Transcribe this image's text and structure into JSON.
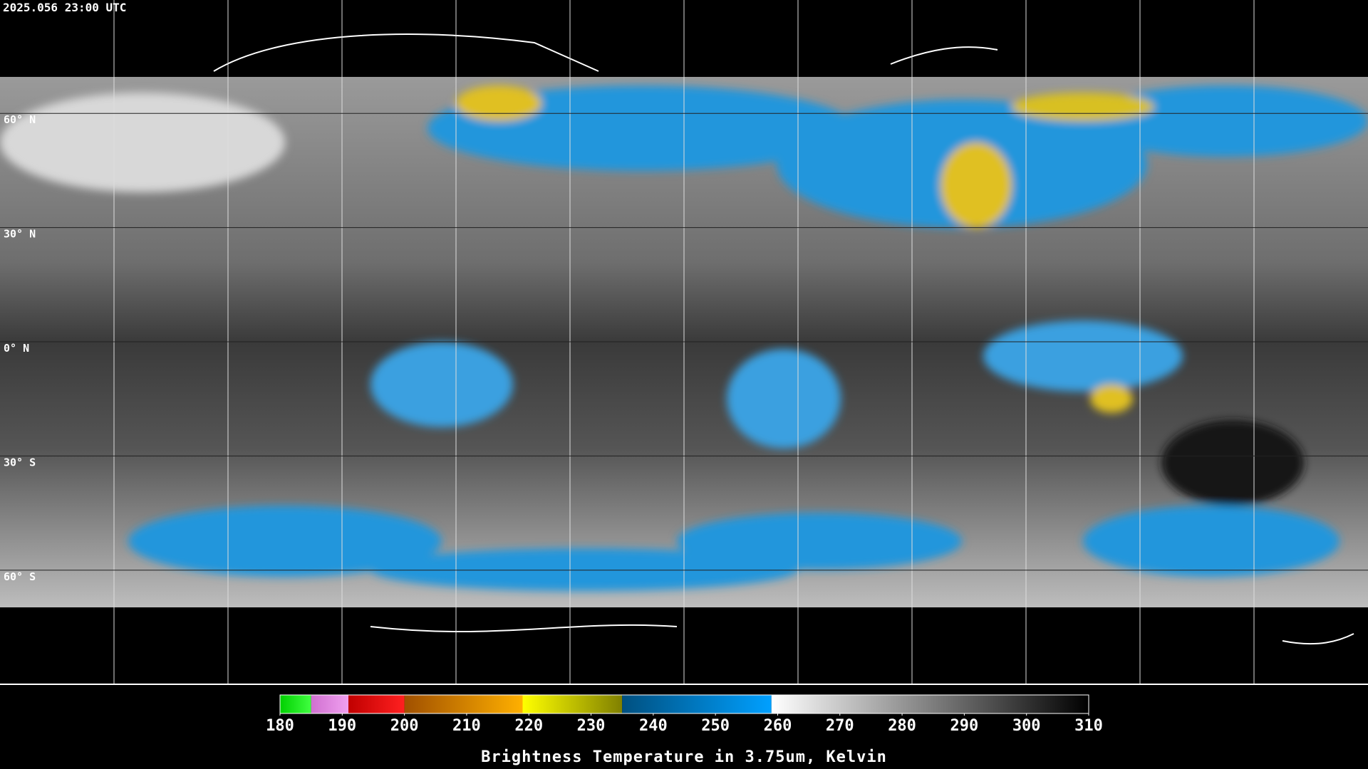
{
  "header": {
    "timestamp": "2025.056 23:00 UTC"
  },
  "latitude_labels": [
    "60° N",
    "30° N",
    "0° N",
    "30° S",
    "60° S"
  ],
  "colorbar": {
    "label": "Brightness Temperature in 3.75um, Kelvin",
    "lim": [
      180,
      310
    ],
    "ticks": [
      180,
      190,
      200,
      210,
      220,
      230,
      240,
      250,
      260,
      270,
      280,
      290,
      300,
      310
    ],
    "segments": [
      {
        "from": 180,
        "to": 185,
        "colors": [
          "#00d000",
          "#40ff40"
        ]
      },
      {
        "from": 185,
        "to": 191,
        "colors": [
          "#d070d0",
          "#f0a0f0"
        ]
      },
      {
        "from": 191,
        "to": 200,
        "colors": [
          "#c00000",
          "#ff2020"
        ]
      },
      {
        "from": 200,
        "to": 219,
        "colors": [
          "#a05000",
          "#ffb000"
        ]
      },
      {
        "from": 219,
        "to": 235,
        "colors": [
          "#ffff00",
          "#808000"
        ]
      },
      {
        "from": 235,
        "to": 259,
        "colors": [
          "#005080",
          "#00a0ff"
        ]
      },
      {
        "from": 259,
        "to": 310,
        "colors": [
          "#ffffff",
          "#000000"
        ]
      }
    ]
  }
}
